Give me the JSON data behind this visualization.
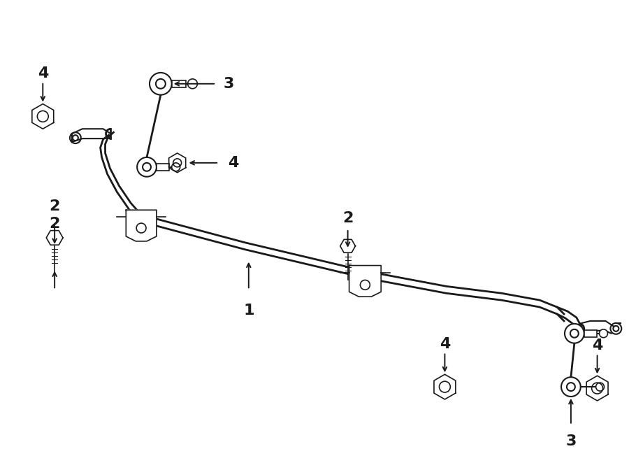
{
  "bg_color": "#ffffff",
  "line_color": "#1a1a1a",
  "fig_width": 9.0,
  "fig_height": 6.62,
  "dpi": 100
}
